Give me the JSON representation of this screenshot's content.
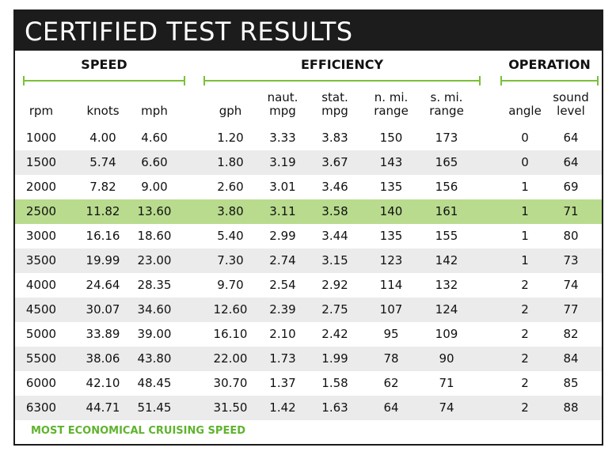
{
  "title": "CERTIFIED TEST RESULTS",
  "groups": {
    "speed": "SPEED",
    "efficiency": "EFFICIENCY",
    "operation": "OPERATION"
  },
  "columns": [
    [
      "rpm"
    ],
    [
      "knots"
    ],
    [
      "mph"
    ],
    [
      "gph"
    ],
    [
      "naut.",
      "mpg"
    ],
    [
      "stat.",
      "mpg"
    ],
    [
      "n. mi.",
      "range"
    ],
    [
      "s. mi.",
      "range"
    ],
    [
      "angle"
    ],
    [
      "sound",
      "level"
    ]
  ],
  "rows": [
    [
      "1000",
      "4.00",
      "4.60",
      "1.20",
      "3.33",
      "3.83",
      "150",
      "173",
      "0",
      "64"
    ],
    [
      "1500",
      "5.74",
      "6.60",
      "1.80",
      "3.19",
      "3.67",
      "143",
      "165",
      "0",
      "64"
    ],
    [
      "2000",
      "7.82",
      "9.00",
      "2.60",
      "3.01",
      "3.46",
      "135",
      "156",
      "1",
      "69"
    ],
    [
      "2500",
      "11.82",
      "13.60",
      "3.80",
      "3.11",
      "3.58",
      "140",
      "161",
      "1",
      "71"
    ],
    [
      "3000",
      "16.16",
      "18.60",
      "5.40",
      "2.99",
      "3.44",
      "135",
      "155",
      "1",
      "80"
    ],
    [
      "3500",
      "19.99",
      "23.00",
      "7.30",
      "2.74",
      "3.15",
      "123",
      "142",
      "1",
      "73"
    ],
    [
      "4000",
      "24.64",
      "28.35",
      "9.70",
      "2.54",
      "2.92",
      "114",
      "132",
      "2",
      "74"
    ],
    [
      "4500",
      "30.07",
      "34.60",
      "12.60",
      "2.39",
      "2.75",
      "107",
      "124",
      "2",
      "77"
    ],
    [
      "5000",
      "33.89",
      "39.00",
      "16.10",
      "2.10",
      "2.42",
      "95",
      "109",
      "2",
      "82"
    ],
    [
      "5500",
      "38.06",
      "43.80",
      "22.00",
      "1.73",
      "1.99",
      "78",
      "90",
      "2",
      "84"
    ],
    [
      "6000",
      "42.10",
      "48.45",
      "30.70",
      "1.37",
      "1.58",
      "62",
      "71",
      "2",
      "85"
    ],
    [
      "6300",
      "44.71",
      "51.45",
      "31.50",
      "1.42",
      "1.63",
      "64",
      "74",
      "2",
      "88"
    ]
  ],
  "highlight_row_index": 3,
  "colors": {
    "title_bar": "#1c1c1c",
    "accent_green": "#7cbf3c",
    "highlight_row": "#b9db8e",
    "shaded_row": "#ebebeb",
    "footnote_text": "#5fb32e"
  },
  "footnote": "MOST ECONOMICAL CRUISING SPEED"
}
